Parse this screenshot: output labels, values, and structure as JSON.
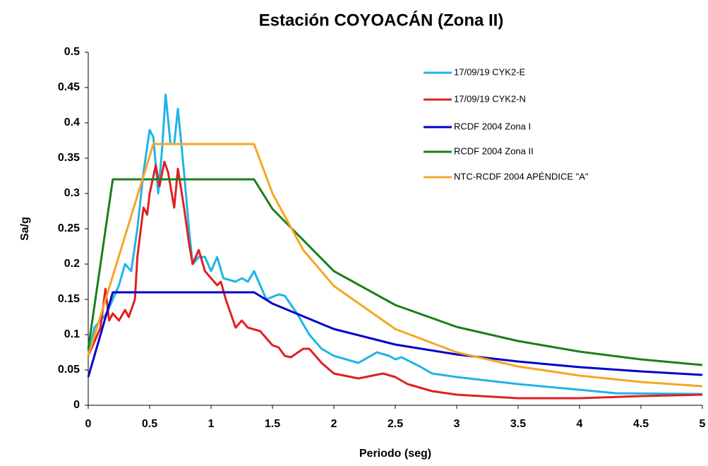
{
  "chart_data": {
    "type": "line",
    "title": "Estación COYOACÁN (Zona II)",
    "xlabel": "Periodo (seg)",
    "ylabel": "Sa/g",
    "xlim": [
      0,
      5
    ],
    "xticks": [
      0,
      0.5,
      1,
      1.5,
      2,
      2.5,
      3,
      3.5,
      4,
      4.5,
      5
    ],
    "ylim": [
      0,
      0.5
    ],
    "yticks": [
      0,
      0.05,
      0.1,
      0.15,
      0.2,
      0.25,
      0.3,
      0.35,
      0.4,
      0.45,
      0.5
    ],
    "grid": false,
    "legend": "upper right",
    "series": [
      {
        "name": "17/09/19 CYK2-E",
        "color": "#1fb4e8",
        "x": [
          0,
          0.05,
          0.1,
          0.15,
          0.2,
          0.25,
          0.3,
          0.35,
          0.4,
          0.45,
          0.5,
          0.53,
          0.57,
          0.6,
          0.63,
          0.67,
          0.7,
          0.73,
          0.78,
          0.82,
          0.85,
          0.9,
          0.95,
          1,
          1.05,
          1.1,
          1.2,
          1.25,
          1.3,
          1.35,
          1.4,
          1.45,
          1.55,
          1.6,
          1.7,
          1.8,
          1.9,
          2,
          2.2,
          2.35,
          2.45,
          2.5,
          2.55,
          2.7,
          2.8,
          3,
          3.5,
          4,
          4.3,
          5
        ],
        "values": [
          0.07,
          0.11,
          0.12,
          0.13,
          0.15,
          0.17,
          0.2,
          0.19,
          0.25,
          0.33,
          0.39,
          0.38,
          0.3,
          0.36,
          0.44,
          0.37,
          0.37,
          0.42,
          0.33,
          0.25,
          0.2,
          0.21,
          0.21,
          0.19,
          0.21,
          0.18,
          0.175,
          0.18,
          0.175,
          0.19,
          0.17,
          0.15,
          0.157,
          0.155,
          0.13,
          0.1,
          0.08,
          0.07,
          0.06,
          0.075,
          0.07,
          0.065,
          0.068,
          0.055,
          0.045,
          0.04,
          0.03,
          0.022,
          0.017,
          0.016
        ]
      },
      {
        "name": "17/09/19 CYK2-N",
        "color": "#e02020",
        "x": [
          0,
          0.05,
          0.1,
          0.14,
          0.17,
          0.2,
          0.25,
          0.3,
          0.33,
          0.38,
          0.4,
          0.45,
          0.48,
          0.5,
          0.55,
          0.58,
          0.62,
          0.65,
          0.7,
          0.73,
          0.78,
          0.82,
          0.85,
          0.9,
          0.95,
          1,
          1.05,
          1.08,
          1.12,
          1.2,
          1.25,
          1.3,
          1.4,
          1.5,
          1.55,
          1.6,
          1.65,
          1.75,
          1.8,
          1.9,
          2,
          2.2,
          2.4,
          2.5,
          2.6,
          2.8,
          3,
          3.5,
          4,
          4.5,
          5
        ],
        "values": [
          0.07,
          0.09,
          0.11,
          0.165,
          0.12,
          0.13,
          0.12,
          0.135,
          0.125,
          0.15,
          0.21,
          0.28,
          0.27,
          0.3,
          0.34,
          0.31,
          0.345,
          0.33,
          0.28,
          0.335,
          0.28,
          0.23,
          0.2,
          0.22,
          0.19,
          0.18,
          0.17,
          0.175,
          0.15,
          0.11,
          0.12,
          0.11,
          0.105,
          0.085,
          0.082,
          0.07,
          0.068,
          0.08,
          0.08,
          0.06,
          0.045,
          0.038,
          0.045,
          0.04,
          0.03,
          0.02,
          0.015,
          0.01,
          0.01,
          0.013,
          0.015
        ]
      },
      {
        "name": "RCDF 2004 Zona I",
        "color": "#0000cc",
        "x": [
          0,
          0.2,
          1.35,
          1.5,
          2,
          2.5,
          3,
          3.5,
          4,
          4.5,
          5
        ],
        "values": [
          0.04,
          0.16,
          0.16,
          0.144,
          0.108,
          0.086,
          0.072,
          0.062,
          0.054,
          0.048,
          0.043
        ]
      },
      {
        "name": "RCDF 2004 Zona II",
        "color": "#1a7f1a",
        "x": [
          0,
          0.2,
          1.35,
          1.5,
          2,
          2.5,
          3,
          3.5,
          4,
          4.5,
          5
        ],
        "values": [
          0.08,
          0.32,
          0.32,
          0.278,
          0.19,
          0.142,
          0.111,
          0.091,
          0.076,
          0.065,
          0.057
        ]
      },
      {
        "name": "NTC-RCDF 2004 APÉNDICE \"A\"",
        "color": "#f5a623",
        "x": [
          0,
          0.53,
          1.35,
          1.5,
          1.75,
          2,
          2.5,
          3,
          3.5,
          4,
          4.5,
          5
        ],
        "values": [
          0.07,
          0.37,
          0.37,
          0.3,
          0.22,
          0.169,
          0.108,
          0.075,
          0.055,
          0.042,
          0.033,
          0.027
        ]
      }
    ]
  }
}
